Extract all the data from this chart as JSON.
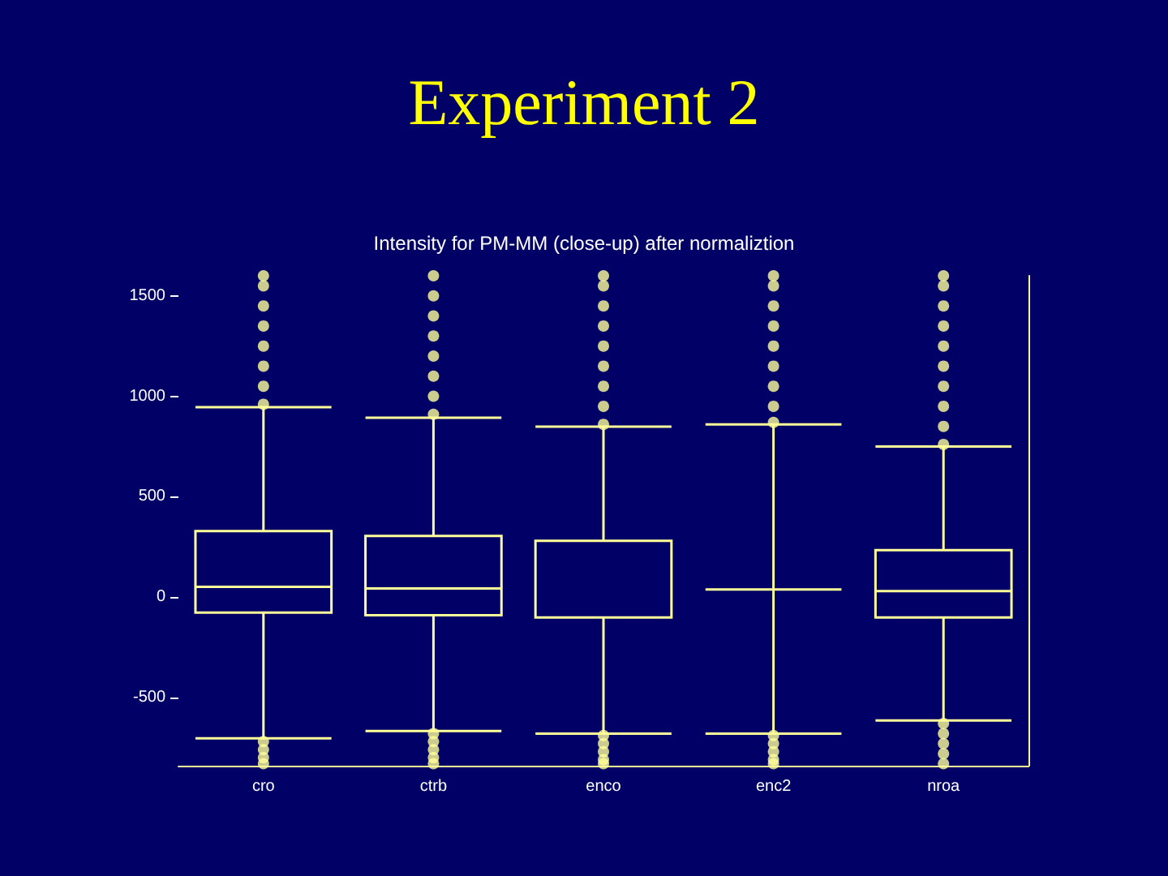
{
  "chart_data": {
    "type": "box",
    "title": "Experiment 2",
    "subtitle": "Intensity for PM-MM (close-up) after normaliztion",
    "categories": [
      "cro",
      "ctrb",
      "enco",
      "enc2",
      "nroa"
    ],
    "color": "#ffff99",
    "boxes": [
      {
        "low": -704,
        "q1": -78,
        "median": 51,
        "q3": 328,
        "high": 946,
        "outliers": [
          960,
          1050,
          1150,
          1250,
          1350,
          1450,
          1550,
          1600,
          -720,
          -760,
          -800,
          -830
        ]
      },
      {
        "low": -667,
        "q1": -91,
        "median": 43,
        "q3": 304,
        "high": 893,
        "outliers": [
          910,
          1000,
          1100,
          1200,
          1300,
          1400,
          1500,
          1600,
          -680,
          -720,
          -760,
          -800,
          -830
        ]
      },
      {
        "low": -680,
        "q1": -102,
        "median": -102,
        "q3": 280,
        "high": 849,
        "outliers": [
          860,
          950,
          1050,
          1150,
          1250,
          1350,
          1450,
          1550,
          1600,
          -690,
          -730,
          -770,
          -810,
          -830
        ]
      },
      {
        "low": -680,
        "q1": 38,
        "median": 38,
        "q3": 38,
        "high": 860,
        "outliers": [
          870,
          950,
          1050,
          1150,
          1250,
          1350,
          1450,
          1550,
          1600,
          -690,
          -730,
          -770,
          -810,
          -830
        ]
      },
      {
        "low": -615,
        "q1": -102,
        "median": 30,
        "q3": 234,
        "high": 750,
        "outliers": [
          760,
          850,
          950,
          1050,
          1150,
          1250,
          1350,
          1450,
          1550,
          1600,
          -630,
          -680,
          -730,
          -780,
          -830
        ]
      }
    ],
    "ylim": [
      -840,
      1600
    ],
    "yticks": [
      -500,
      0,
      500,
      1000,
      1500
    ],
    "grid": false
  }
}
